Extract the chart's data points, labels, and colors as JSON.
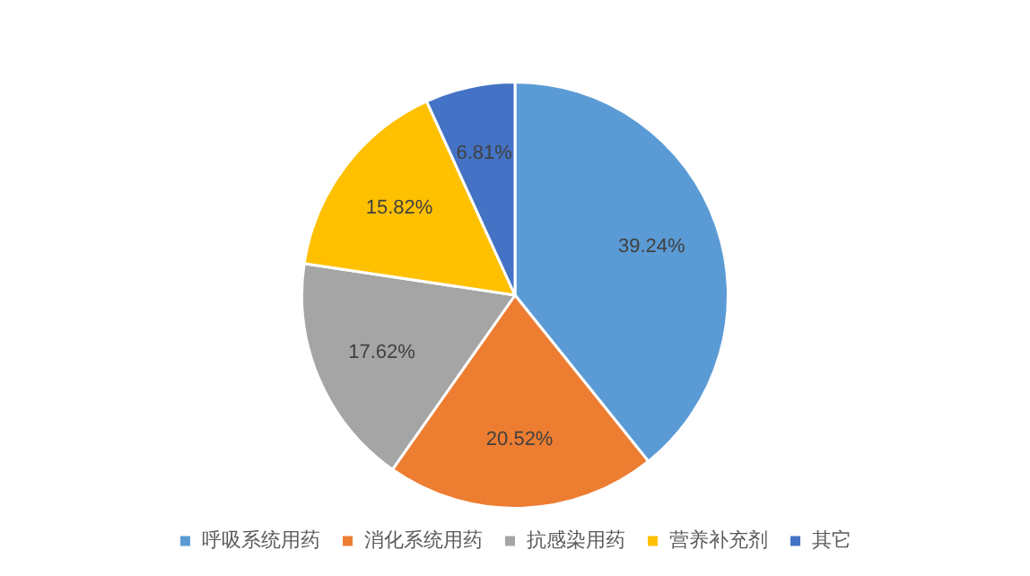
{
  "chart_data": {
    "type": "pie",
    "categories": [
      "呼吸系统用药",
      "消化系统用药",
      "抗感染用药",
      "营养补充剂",
      "其它"
    ],
    "values": [
      39.24,
      20.52,
      17.62,
      15.82,
      6.81
    ],
    "colors": [
      "#5b9bd5",
      "#ed7d31",
      "#a5a5a5",
      "#ffc000",
      "#4472c4"
    ],
    "value_labels": [
      "39.24%",
      "20.52%",
      "17.62%",
      "15.82%",
      "6.81%"
    ],
    "legend": "bottom"
  }
}
